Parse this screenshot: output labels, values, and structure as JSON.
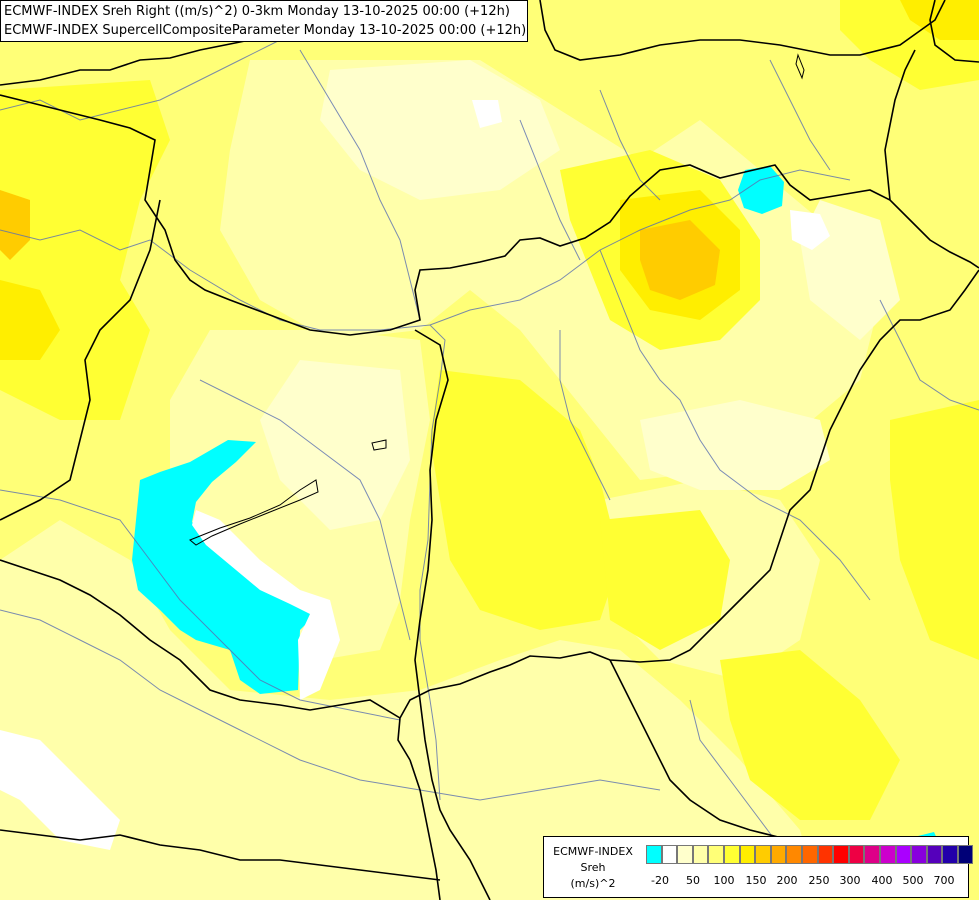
{
  "title": {
    "line1": "ECMWF-INDEX Sreh Right ((m/s)^2) 0-3km Monday 13-10-2025 00:00 (+12h)",
    "line2": "ECMWF-INDEX SupercellCompositeParameter Monday 13-10-2025 00:00 (+12h)"
  },
  "legend": {
    "source": "ECMWF-INDEX",
    "variable": "Sreh",
    "unit": "(m/s)^2",
    "colors": [
      "#00ffff",
      "#ffffff",
      "#ffffcc",
      "#ffffaa",
      "#ffff77",
      "#ffff33",
      "#ffee00",
      "#ffcc00",
      "#ffaa00",
      "#ff8800",
      "#ff6600",
      "#ff3300",
      "#ff0000",
      "#ee0044",
      "#dd0088",
      "#cc00cc",
      "#aa00ff",
      "#8800dd",
      "#5500bb",
      "#2200aa",
      "#000077"
    ],
    "ticks": [
      "-20",
      "50",
      "100",
      "150",
      "200",
      "250",
      "300",
      "400",
      "500",
      "700"
    ]
  }
}
